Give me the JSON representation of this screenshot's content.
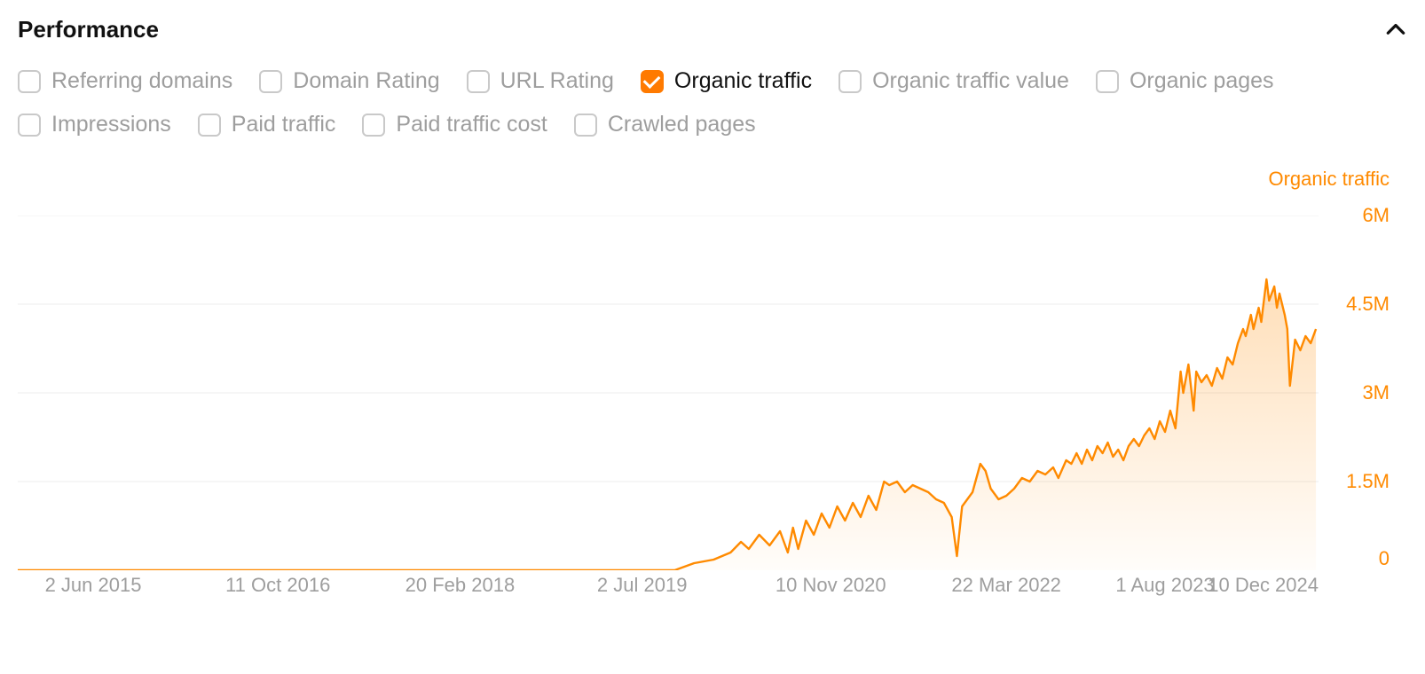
{
  "title": "Performance",
  "collapse_icon": "chevron-up",
  "metrics": [
    {
      "id": "referring-domains",
      "label": "Referring domains",
      "checked": false
    },
    {
      "id": "domain-rating",
      "label": "Domain Rating",
      "checked": false
    },
    {
      "id": "url-rating",
      "label": "URL Rating",
      "checked": false
    },
    {
      "id": "organic-traffic",
      "label": "Organic traffic",
      "checked": true
    },
    {
      "id": "organic-traffic-value",
      "label": "Organic traffic value",
      "checked": false
    },
    {
      "id": "organic-pages",
      "label": "Organic pages",
      "checked": false
    },
    {
      "id": "impressions",
      "label": "Impressions",
      "checked": false
    },
    {
      "id": "paid-traffic",
      "label": "Paid traffic",
      "checked": false
    },
    {
      "id": "paid-traffic-cost",
      "label": "Paid traffic cost",
      "checked": false
    },
    {
      "id": "crawled-pages",
      "label": "Crawled pages",
      "checked": false
    }
  ],
  "metric_row_break_after_index": 5,
  "chart": {
    "type": "area",
    "series_label": "Organic traffic",
    "colors": {
      "line": "#ff8a00",
      "fill_top": "rgba(255,138,0,0.28)",
      "fill_bottom": "rgba(255,138,0,0.02)",
      "grid": "#ececec",
      "axis_text": "#ff8a00",
      "x_axis_text": "#9e9e9e",
      "background": "#ffffff"
    },
    "y_axis": {
      "min": 0,
      "max": 6000000,
      "ticks": [
        {
          "value": 6000000,
          "label": "6M"
        },
        {
          "value": 4500000,
          "label": "4.5M"
        },
        {
          "value": 3000000,
          "label": "3M"
        },
        {
          "value": 1500000,
          "label": "1.5M"
        }
      ],
      "zero_label": "0"
    },
    "x_axis": {
      "ticks": [
        {
          "pos": 0.058,
          "label": "2 Jun 2015"
        },
        {
          "pos": 0.2,
          "label": "11 Oct 2016"
        },
        {
          "pos": 0.34,
          "label": "20 Feb 2018"
        },
        {
          "pos": 0.48,
          "label": "2 Jul 2019"
        },
        {
          "pos": 0.625,
          "label": "10 Nov 2020"
        },
        {
          "pos": 0.76,
          "label": "22 Mar 2022"
        },
        {
          "pos": 0.882,
          "label": "1 Aug 2023"
        },
        {
          "pos": 1.0,
          "label": "10 Dec 2024"
        }
      ]
    },
    "series": [
      [
        0.0,
        0.0
      ],
      [
        0.06,
        0.0
      ],
      [
        0.12,
        0.0
      ],
      [
        0.18,
        0.0
      ],
      [
        0.24,
        0.0
      ],
      [
        0.3,
        0.0
      ],
      [
        0.36,
        0.0
      ],
      [
        0.42,
        0.0
      ],
      [
        0.48,
        0.0
      ],
      [
        0.505,
        0.0
      ],
      [
        0.52,
        0.02
      ],
      [
        0.535,
        0.03
      ],
      [
        0.548,
        0.05
      ],
      [
        0.556,
        0.08
      ],
      [
        0.562,
        0.06
      ],
      [
        0.57,
        0.1
      ],
      [
        0.578,
        0.07
      ],
      [
        0.586,
        0.11
      ],
      [
        0.592,
        0.05
      ],
      [
        0.596,
        0.12
      ],
      [
        0.6,
        0.06
      ],
      [
        0.606,
        0.14
      ],
      [
        0.612,
        0.1
      ],
      [
        0.618,
        0.16
      ],
      [
        0.624,
        0.12
      ],
      [
        0.63,
        0.18
      ],
      [
        0.636,
        0.14
      ],
      [
        0.642,
        0.19
      ],
      [
        0.648,
        0.15
      ],
      [
        0.654,
        0.21
      ],
      [
        0.66,
        0.17
      ],
      [
        0.666,
        0.25
      ],
      [
        0.67,
        0.24
      ],
      [
        0.676,
        0.25
      ],
      [
        0.682,
        0.22
      ],
      [
        0.688,
        0.24
      ],
      [
        0.694,
        0.23
      ],
      [
        0.7,
        0.22
      ],
      [
        0.706,
        0.2
      ],
      [
        0.712,
        0.19
      ],
      [
        0.718,
        0.15
      ],
      [
        0.722,
        0.04
      ],
      [
        0.726,
        0.18
      ],
      [
        0.73,
        0.2
      ],
      [
        0.734,
        0.22
      ],
      [
        0.74,
        0.3
      ],
      [
        0.744,
        0.28
      ],
      [
        0.748,
        0.23
      ],
      [
        0.754,
        0.2
      ],
      [
        0.76,
        0.21
      ],
      [
        0.766,
        0.23
      ],
      [
        0.772,
        0.26
      ],
      [
        0.778,
        0.25
      ],
      [
        0.784,
        0.28
      ],
      [
        0.79,
        0.27
      ],
      [
        0.796,
        0.29
      ],
      [
        0.8,
        0.26
      ],
      [
        0.806,
        0.31
      ],
      [
        0.81,
        0.3
      ],
      [
        0.814,
        0.33
      ],
      [
        0.818,
        0.3
      ],
      [
        0.822,
        0.34
      ],
      [
        0.826,
        0.31
      ],
      [
        0.83,
        0.35
      ],
      [
        0.834,
        0.33
      ],
      [
        0.838,
        0.36
      ],
      [
        0.842,
        0.32
      ],
      [
        0.846,
        0.34
      ],
      [
        0.85,
        0.31
      ],
      [
        0.854,
        0.35
      ],
      [
        0.858,
        0.37
      ],
      [
        0.862,
        0.35
      ],
      [
        0.866,
        0.38
      ],
      [
        0.87,
        0.4
      ],
      [
        0.874,
        0.37
      ],
      [
        0.878,
        0.42
      ],
      [
        0.882,
        0.39
      ],
      [
        0.886,
        0.45
      ],
      [
        0.89,
        0.4
      ],
      [
        0.894,
        0.56
      ],
      [
        0.896,
        0.5
      ],
      [
        0.9,
        0.58
      ],
      [
        0.904,
        0.45
      ],
      [
        0.906,
        0.56
      ],
      [
        0.91,
        0.53
      ],
      [
        0.914,
        0.55
      ],
      [
        0.918,
        0.52
      ],
      [
        0.922,
        0.57
      ],
      [
        0.926,
        0.54
      ],
      [
        0.93,
        0.6
      ],
      [
        0.934,
        0.58
      ],
      [
        0.938,
        0.64
      ],
      [
        0.942,
        0.68
      ],
      [
        0.944,
        0.66
      ],
      [
        0.948,
        0.72
      ],
      [
        0.95,
        0.68
      ],
      [
        0.954,
        0.74
      ],
      [
        0.956,
        0.7
      ],
      [
        0.96,
        0.82
      ],
      [
        0.962,
        0.76
      ],
      [
        0.966,
        0.8
      ],
      [
        0.968,
        0.74
      ],
      [
        0.97,
        0.78
      ],
      [
        0.974,
        0.72
      ],
      [
        0.976,
        0.68
      ],
      [
        0.978,
        0.52
      ],
      [
        0.982,
        0.65
      ],
      [
        0.986,
        0.62
      ],
      [
        0.99,
        0.66
      ],
      [
        0.994,
        0.64
      ],
      [
        0.998,
        0.68
      ]
    ]
  }
}
